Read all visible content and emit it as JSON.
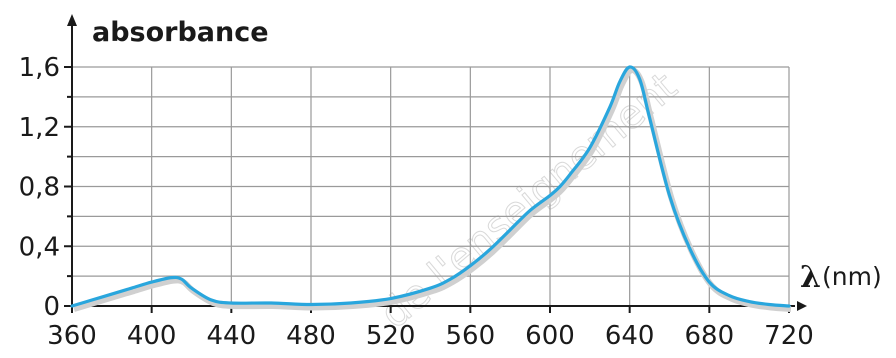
{
  "chart_data": {
    "type": "line",
    "title": "",
    "ylabel": "absorbance",
    "xlabel_symbol": "λ",
    "xlabel_unit": "(nm)",
    "xlim": [
      360,
      720
    ],
    "ylim": [
      0,
      1.6
    ],
    "x_ticks": [
      360,
      400,
      440,
      480,
      520,
      560,
      600,
      640,
      680,
      720
    ],
    "y_ticks": [
      0,
      0.4,
      0.8,
      1.2,
      1.6
    ],
    "y_tick_labels": [
      "0",
      "0,4",
      "0,8",
      "1,2",
      "1,6"
    ],
    "minor_y_ticks": [
      0.2,
      0.6,
      1.0,
      1.4
    ],
    "grid": true,
    "series_color": "#29a6dd",
    "watermark": "de l'enseignement",
    "series": [
      {
        "x": [
          360,
          370,
          380,
          390,
          400,
          410,
          415,
          420,
          430,
          440,
          460,
          480,
          500,
          520,
          540,
          550,
          560,
          570,
          580,
          590,
          600,
          605,
          610,
          620,
          630,
          635,
          640,
          645,
          650,
          660,
          670,
          680,
          690,
          700,
          710,
          720
        ],
        "y": [
          0.0,
          0.04,
          0.08,
          0.12,
          0.16,
          0.19,
          0.18,
          0.12,
          0.04,
          0.02,
          0.02,
          0.01,
          0.02,
          0.05,
          0.12,
          0.18,
          0.27,
          0.38,
          0.51,
          0.64,
          0.74,
          0.8,
          0.88,
          1.06,
          1.33,
          1.5,
          1.6,
          1.52,
          1.26,
          0.74,
          0.39,
          0.16,
          0.07,
          0.03,
          0.01,
          0.0
        ]
      }
    ]
  }
}
